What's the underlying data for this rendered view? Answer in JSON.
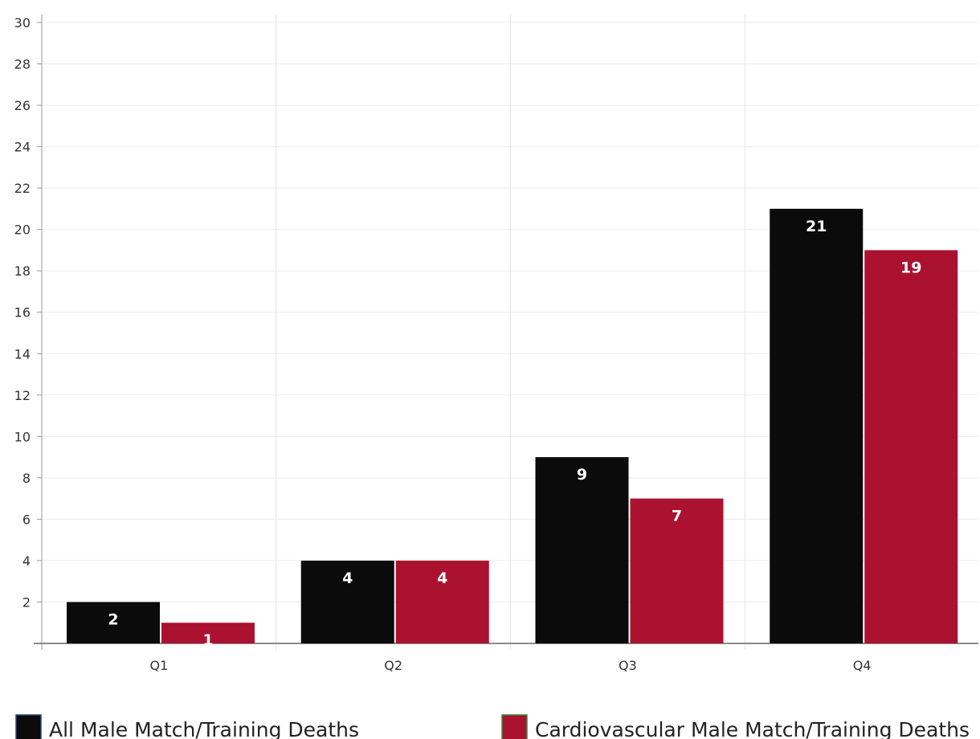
{
  "chart_data": {
    "type": "bar",
    "title": "",
    "xlabel": "",
    "ylabel": "",
    "categories": [
      "Q1",
      "Q2",
      "Q3",
      "Q4"
    ],
    "series": [
      {
        "name": "All Male Match/Training Deaths",
        "color": "#0b0b0b",
        "values": [
          2,
          4,
          9,
          21
        ]
      },
      {
        "name": "Cardiovascular Male Match/Training Deaths",
        "color": "#ab1230",
        "values": [
          1,
          4,
          7,
          19
        ]
      }
    ],
    "ylim": [
      0,
      30
    ],
    "yticks": [
      2,
      4,
      6,
      8,
      10,
      12,
      14,
      16,
      18,
      20,
      22,
      24,
      26,
      28,
      30
    ],
    "grid": true,
    "legend_position": "bottom"
  }
}
